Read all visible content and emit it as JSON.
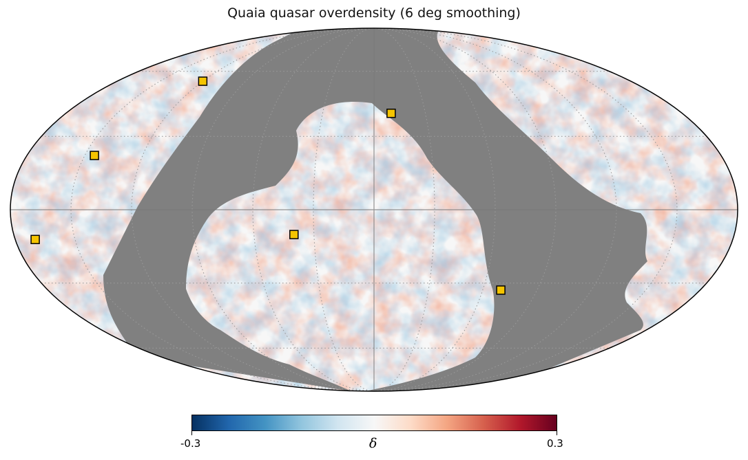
{
  "title": "Quaia quasar overdensity (6 deg smoothing)",
  "projection": "mollweide",
  "graticule": true,
  "colors": {
    "masked": "#808080",
    "marker_fill": "#f5c400",
    "marker_edge": "#000000",
    "grid": "#9a9a9a"
  },
  "colorbar": {
    "colormap": "RdBu_r",
    "min_label": "-0.3",
    "max_label": "0.3",
    "label": "δ",
    "min": -0.3,
    "max": 0.3
  },
  "markers": [
    {
      "lon": -145,
      "lat": 22
    },
    {
      "lon": 10,
      "lat": 40
    },
    {
      "lon": -120,
      "lat": 55
    },
    {
      "lon": 70,
      "lat": -33
    },
    {
      "lon": -40,
      "lat": -10
    },
    {
      "lon": -170,
      "lat": -12
    }
  ],
  "chart_data": {
    "type": "heatmap",
    "title": "Quaia quasar overdensity (6 deg smoothing)",
    "quantity": "δ",
    "range": [
      -0.3,
      0.3
    ],
    "colormap": "RdBu_r",
    "masked_region": "Galactic plane band (gray)",
    "highlighted_sources_count": 6
  }
}
